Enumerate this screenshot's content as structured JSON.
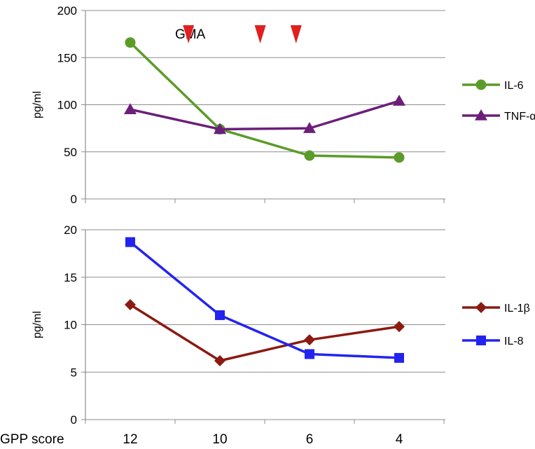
{
  "chart_data": {
    "type": "line",
    "x_axis": {
      "title": "GPP score",
      "categories": [
        "12",
        "10",
        "6",
        "4"
      ]
    },
    "panels": [
      {
        "id": "top",
        "ylabel": "pg/ml",
        "ylim": [
          0,
          200
        ],
        "yticks": [
          0,
          50,
          100,
          150,
          200
        ],
        "grid": true,
        "legend_position": "right",
        "annotation": {
          "label": "GMA",
          "marker": "down-triangle",
          "color": "#e02020",
          "positions": [
            10.7,
            8.2,
            6.6
          ]
        },
        "series": [
          {
            "name": "IL-6",
            "marker": "circle",
            "color": "#5b9b2a",
            "values": [
              166,
              74,
              46,
              44
            ]
          },
          {
            "name": "TNF-α",
            "marker": "triangle",
            "color": "#6b1f7a",
            "values": [
              95,
              74,
              75,
              104
            ]
          }
        ]
      },
      {
        "id": "bottom",
        "ylabel": "pg/ml",
        "ylim": [
          0,
          20
        ],
        "yticks": [
          0,
          5,
          10,
          15,
          20
        ],
        "grid": true,
        "legend_position": "right",
        "series": [
          {
            "name": "IL-1β",
            "marker": "diamond",
            "color": "#8b1a10",
            "values": [
              12.1,
              6.2,
              8.4,
              9.8
            ]
          },
          {
            "name": "IL-8",
            "marker": "square",
            "color": "#2323f0",
            "values": [
              18.7,
              11.0,
              6.9,
              6.5
            ]
          }
        ]
      }
    ]
  }
}
